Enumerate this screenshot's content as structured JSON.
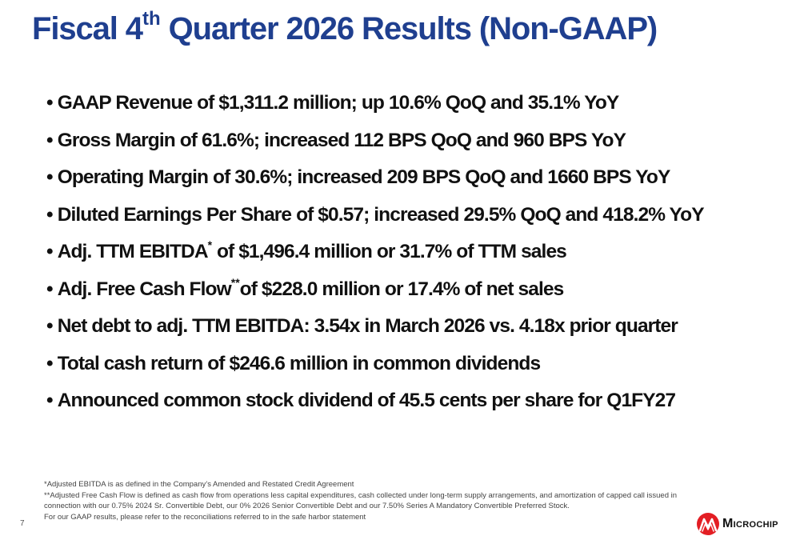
{
  "title": {
    "pre": "Fiscal 4",
    "sup": "th",
    "post": " Quarter 2026 Results (Non-GAAP)"
  },
  "bullet_char": "•",
  "bullets": {
    "b1": "GAAP Revenue of $1,311.2 million; up 10.6% QoQ and 35.1% YoY",
    "b2": "Gross Margin of 61.6%; increased 112 BPS QoQ and 960 BPS YoY",
    "b3": "Operating Margin of 30.6%; increased 209 BPS QoQ and 1660 BPS YoY",
    "b4": "Diluted Earnings Per Share of $0.57; increased 29.5% QoQ and 418.2% YoY",
    "b5_pre": "Adj. TTM EBITDA",
    "b5_sup": "*",
    "b5_post": " of $1,496.4 million or 31.7% of TTM sales",
    "b6_pre": "Adj. Free Cash Flow",
    "b6_sup": "**",
    "b6_post": "of $228.0 million or 17.4% of net sales",
    "b7": "Net debt to adj. TTM EBITDA: 3.54x in March 2026 vs. 4.18x prior quarter",
    "b8": "Total cash return of $246.6 million in common dividends",
    "b9": "Announced common stock dividend of 45.5 cents per share for Q1FY27"
  },
  "footnotes": {
    "f1": "*Adjusted EBITDA is as defined in the Company’s Amended and Restated Credit Agreement",
    "f2": "**Adjusted Free Cash Flow is defined as cash flow from operations less capital expenditures, cash collected under long-term supply arrangements, and amortization of capped call issued in",
    "f3": "connection with our 0.75% 2024 Sr. Convertible Debt, our 0% 2026 Senior Convertible Debt and our 7.50% Series A Mandatory Convertible Preferred Stock.",
    "f4": "For our GAAP results, please refer to the reconciliations referred to in the safe harbor statement"
  },
  "page_number": "7",
  "logo": {
    "text": "Microchip",
    "icon": "microchip-logo-icon",
    "color": "#e31e24"
  },
  "colors": {
    "title": "#1f3f8f",
    "body_text": "#111111",
    "footnote_text": "#444444"
  }
}
